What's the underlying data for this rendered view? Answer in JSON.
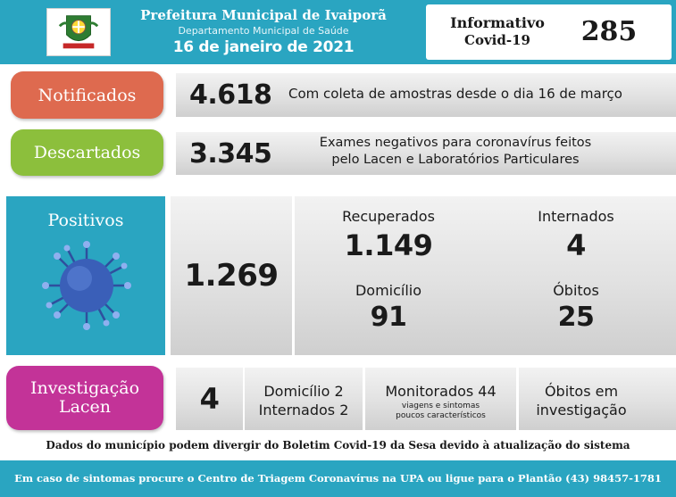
{
  "header": {
    "title": "Prefeitura Municipal de Ivaiporã",
    "subtitle": "Departamento Municipal de Saúde",
    "date": "16 de janeiro de 2021",
    "bulletin_label_1": "Informativo",
    "bulletin_label_2": "Covid-19",
    "bulletin_number": "285"
  },
  "notificados": {
    "label": "Notificados",
    "value": "4.618",
    "description": "Com coleta de amostras desde o dia 16 de março"
  },
  "descartados": {
    "label": "Descartados",
    "value": "3.345",
    "description_line1": "Exames negativos para coronavírus feitos",
    "description_line2": "pelo Lacen e Laboratórios Particulares"
  },
  "positivos": {
    "label": "Positivos",
    "value": "1.269",
    "recuperados_label": "Recuperados",
    "recuperados_value": "1.149",
    "internados_label": "Internados",
    "internados_value": "4",
    "domicilio_label": "Domicílio",
    "domicilio_value": "91",
    "obitos_label": "Óbitos",
    "obitos_value": "25"
  },
  "investigacao": {
    "label_line1": "Investigação",
    "label_line2": "Lacen",
    "value": "4",
    "domicilio": "Domicílio 2",
    "internados": "Internados 2",
    "monitorados": "Monitorados 44",
    "monitorados_note_1": "viagens e sintomas",
    "monitorados_note_2": "poucos característicos",
    "obitos_line1": "Óbitos em",
    "obitos_line2": "investigação"
  },
  "disclaimer": "Dados do município podem divergir do Boletim Covid-19 da Sesa devido à atualização do sistema",
  "footer": "Em caso de sintomas procure o Centro de Triagem Coronavírus na UPA ou ligue para o Plantão (43) 98457-1781",
  "colors": {
    "teal": "#2aa5c1",
    "notificados": "#de6a4f",
    "descartados": "#8cbf3c",
    "investigacao": "#c33398",
    "virus": "#3a5fb8"
  }
}
